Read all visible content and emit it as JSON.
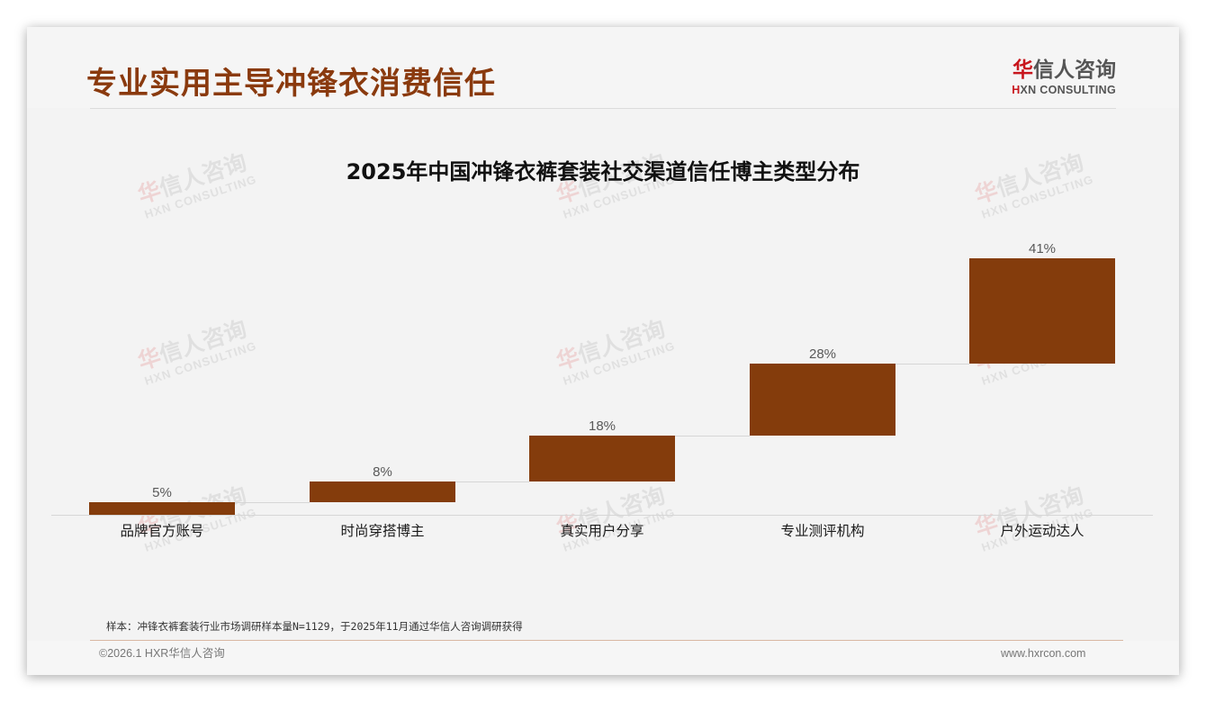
{
  "header": {
    "title": "专业实用主导冲锋衣消费信任",
    "logo": {
      "cn_first": "华",
      "cn_rest": "信人咨询",
      "en_first": "H",
      "en_rest": "XN CONSULTING"
    }
  },
  "watermark": {
    "cn_first": "华",
    "cn_rest": "信人咨询",
    "en": "HXN CONSULTING"
  },
  "chart_data": {
    "type": "bar",
    "subtype": "waterfall",
    "title": "2025年中国冲锋衣裤套装社交渠道信任博主类型分布",
    "categories": [
      "品牌官方账号",
      "时尚穿搭博主",
      "真实用户分享",
      "专业测评机构",
      "户外运动达人"
    ],
    "values": [
      5,
      8,
      18,
      28,
      41
    ],
    "labels": [
      "5%",
      "8%",
      "18%",
      "28%",
      "41%"
    ],
    "cumulative": [
      5,
      13,
      31,
      59,
      100
    ],
    "unit": "%",
    "xlabel": "",
    "ylabel": "",
    "ylim": [
      0,
      100
    ],
    "grid": false,
    "legend": false,
    "bar_color": "#843c0c",
    "connector_lines": true
  },
  "footer": {
    "note": "样本：冲锋衣裤套装行业市场调研样本量N=1129，于2025年11月通过华信人咨询调研获得",
    "copyright": "©2026.1 HXR华信人咨询",
    "website": "www.hxrcon.com"
  },
  "colors": {
    "title": "#8a3a0e",
    "bar": "#843c0c",
    "logo_red": "#c8161d",
    "background": "#f3f3f3"
  }
}
